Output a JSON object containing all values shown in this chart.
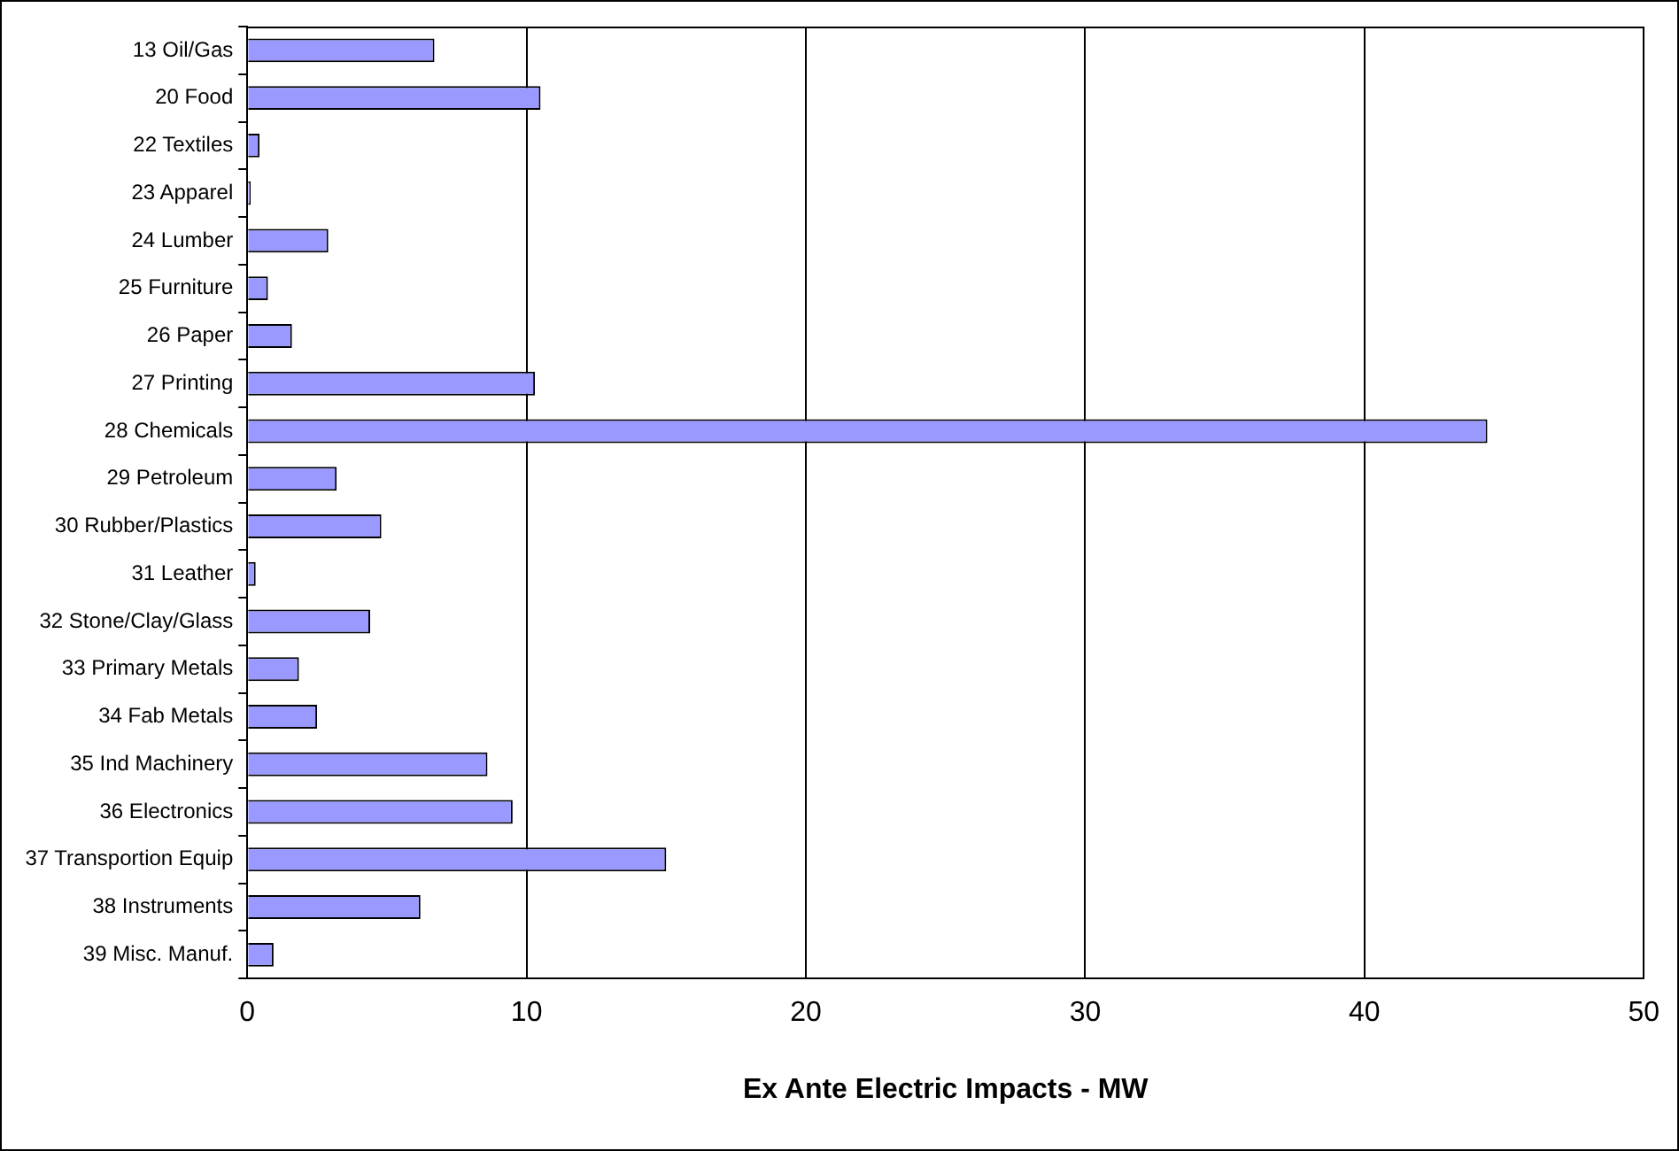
{
  "chart_data": {
    "type": "bar",
    "orientation": "horizontal",
    "xlabel": "Ex Ante Electric Impacts - MW",
    "categories": [
      "13 Oil/Gas",
      "20 Food",
      "22 Textiles",
      "23 Apparel",
      "24 Lumber",
      "25 Furniture",
      "26 Paper",
      "27 Printing",
      "28 Chemicals",
      "29 Petroleum",
      "30 Rubber/Plastics",
      "31 Leather",
      "32 Stone/Clay/Glass",
      "33 Primary Metals",
      "34 Fab Metals",
      "35 Ind Machinery",
      "36 Electronics",
      "37 Transportion Equip",
      "38 Instruments",
      "39 Misc. Manuf."
    ],
    "values": [
      6.7,
      10.5,
      0.44,
      0.12,
      2.9,
      0.74,
      1.6,
      10.3,
      44.4,
      3.2,
      4.8,
      0.3,
      4.4,
      1.85,
      2.5,
      8.6,
      9.5,
      15.0,
      6.2,
      0.94
    ],
    "color": "#9999ff",
    "xlim": [
      0,
      50
    ],
    "xticks": [
      0,
      10,
      20,
      30,
      40,
      50
    ],
    "grid": "x",
    "legend": false
  }
}
